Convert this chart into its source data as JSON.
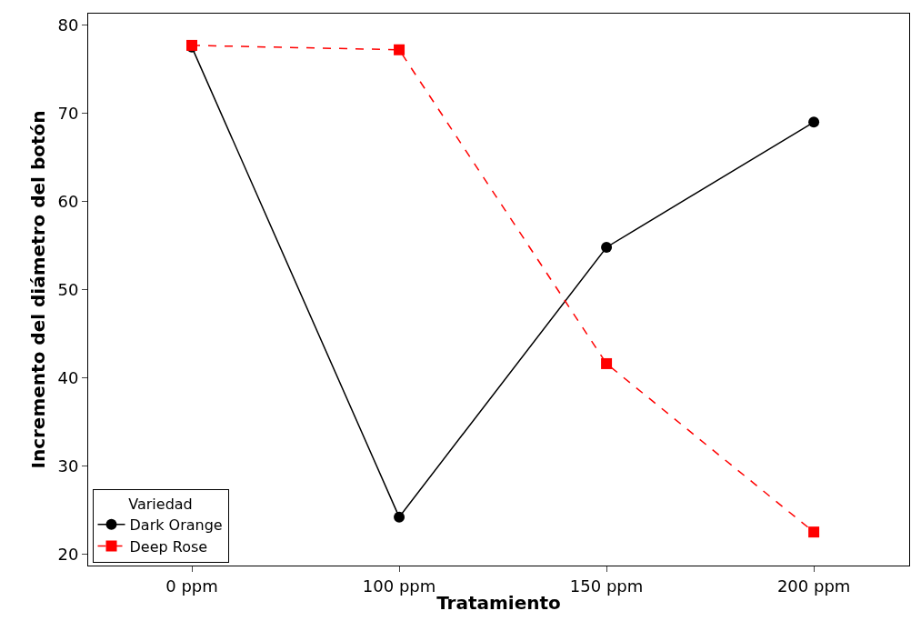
{
  "chart_data": {
    "type": "line",
    "xlabel": "Tratamiento",
    "ylabel": "Incremento del diámetro del botón",
    "legend_title": "Variedad",
    "categories": [
      "0 ppm",
      "100 ppm",
      "150 ppm",
      "200 ppm"
    ],
    "series": [
      {
        "name": "Dark Orange",
        "color": "#000000",
        "values": [
          77.5,
          24.2,
          54.8,
          69.0
        ],
        "marker": "circle",
        "line_style": "solid"
      },
      {
        "name": "Deep Rose",
        "color": "#ff0000",
        "values": [
          77.7,
          77.2,
          41.6,
          22.5
        ],
        "marker": "square",
        "line_style": "dashed"
      }
    ],
    "ylim": [
      18.7,
      81.3
    ],
    "yticks": [
      20,
      30,
      40,
      50,
      60,
      70,
      80
    ],
    "legend": "bottom left"
  }
}
